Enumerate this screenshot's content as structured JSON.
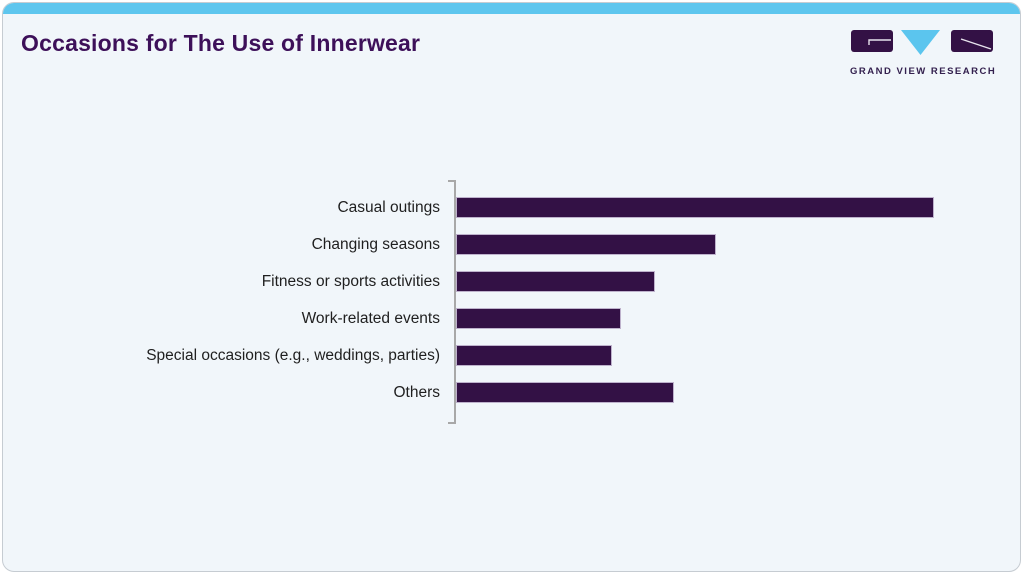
{
  "card": {
    "background": "#f1f6fa",
    "border_color": "#c6ccd2",
    "top_strip_color": "#5ec6ee"
  },
  "header": {
    "title": "Occasions for The Use of Innerwear",
    "title_color": "#3d1059"
  },
  "logo": {
    "text": "GRAND VIEW RESEARCH",
    "purple": "#331145",
    "cyan": "#5bc5ee",
    "glyph_line_color": "#e8e4ee",
    "text_color": "#33204e"
  },
  "chart_data": {
    "type": "bar",
    "orientation": "horizontal",
    "title": "Occasions for The Use of Innerwear",
    "categories": [
      "Casual outings",
      "Changing seasons",
      "Fitness or sports activities",
      "Work-related events",
      "Special occasions (e.g., weddings, parties)",
      "Others"
    ],
    "values_pct_of_max": [
      100,
      54.4,
      41.6,
      34.5,
      32.6,
      45.6
    ],
    "value_axis_visible": false,
    "gridlines": false,
    "legend": "none",
    "bar_color": "#331145",
    "bar_border_color": "#beb2cc",
    "axis_color": "#a8a8a8",
    "label_color": "#1f1f1f"
  }
}
